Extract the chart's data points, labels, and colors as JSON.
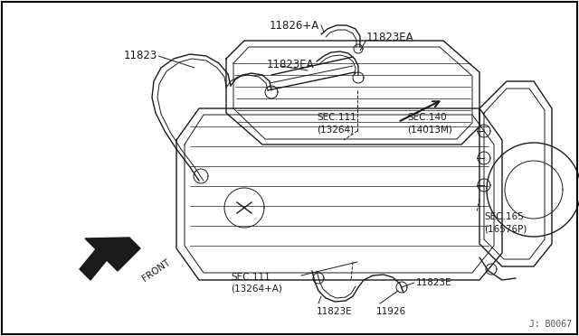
{
  "bg_color": "#ffffff",
  "border_color": "#000000",
  "line_color": "#1a1a1a",
  "fig_width": 6.4,
  "fig_height": 3.72,
  "dpi": 100,
  "watermark": "J: B0067",
  "label_11823": "11823",
  "label_11826A": "11826+A",
  "label_11823EA_1": "11823EA",
  "label_11823EA_2": "11823EA",
  "label_sec111_1": "SEC.111",
  "label_sec111_1b": "(13264)",
  "label_sec140": "SEC.140",
  "label_sec140b": "(14013M)",
  "label_sec165": "SEC.165",
  "label_sec165b": "(16576P)",
  "label_sec111_2": "SEC.111",
  "label_sec111_2b": "(13264+A)",
  "label_11823E_1": "11823E",
  "label_11823E_2": "11823E",
  "label_11826": "11926",
  "label_front": "FRONT"
}
